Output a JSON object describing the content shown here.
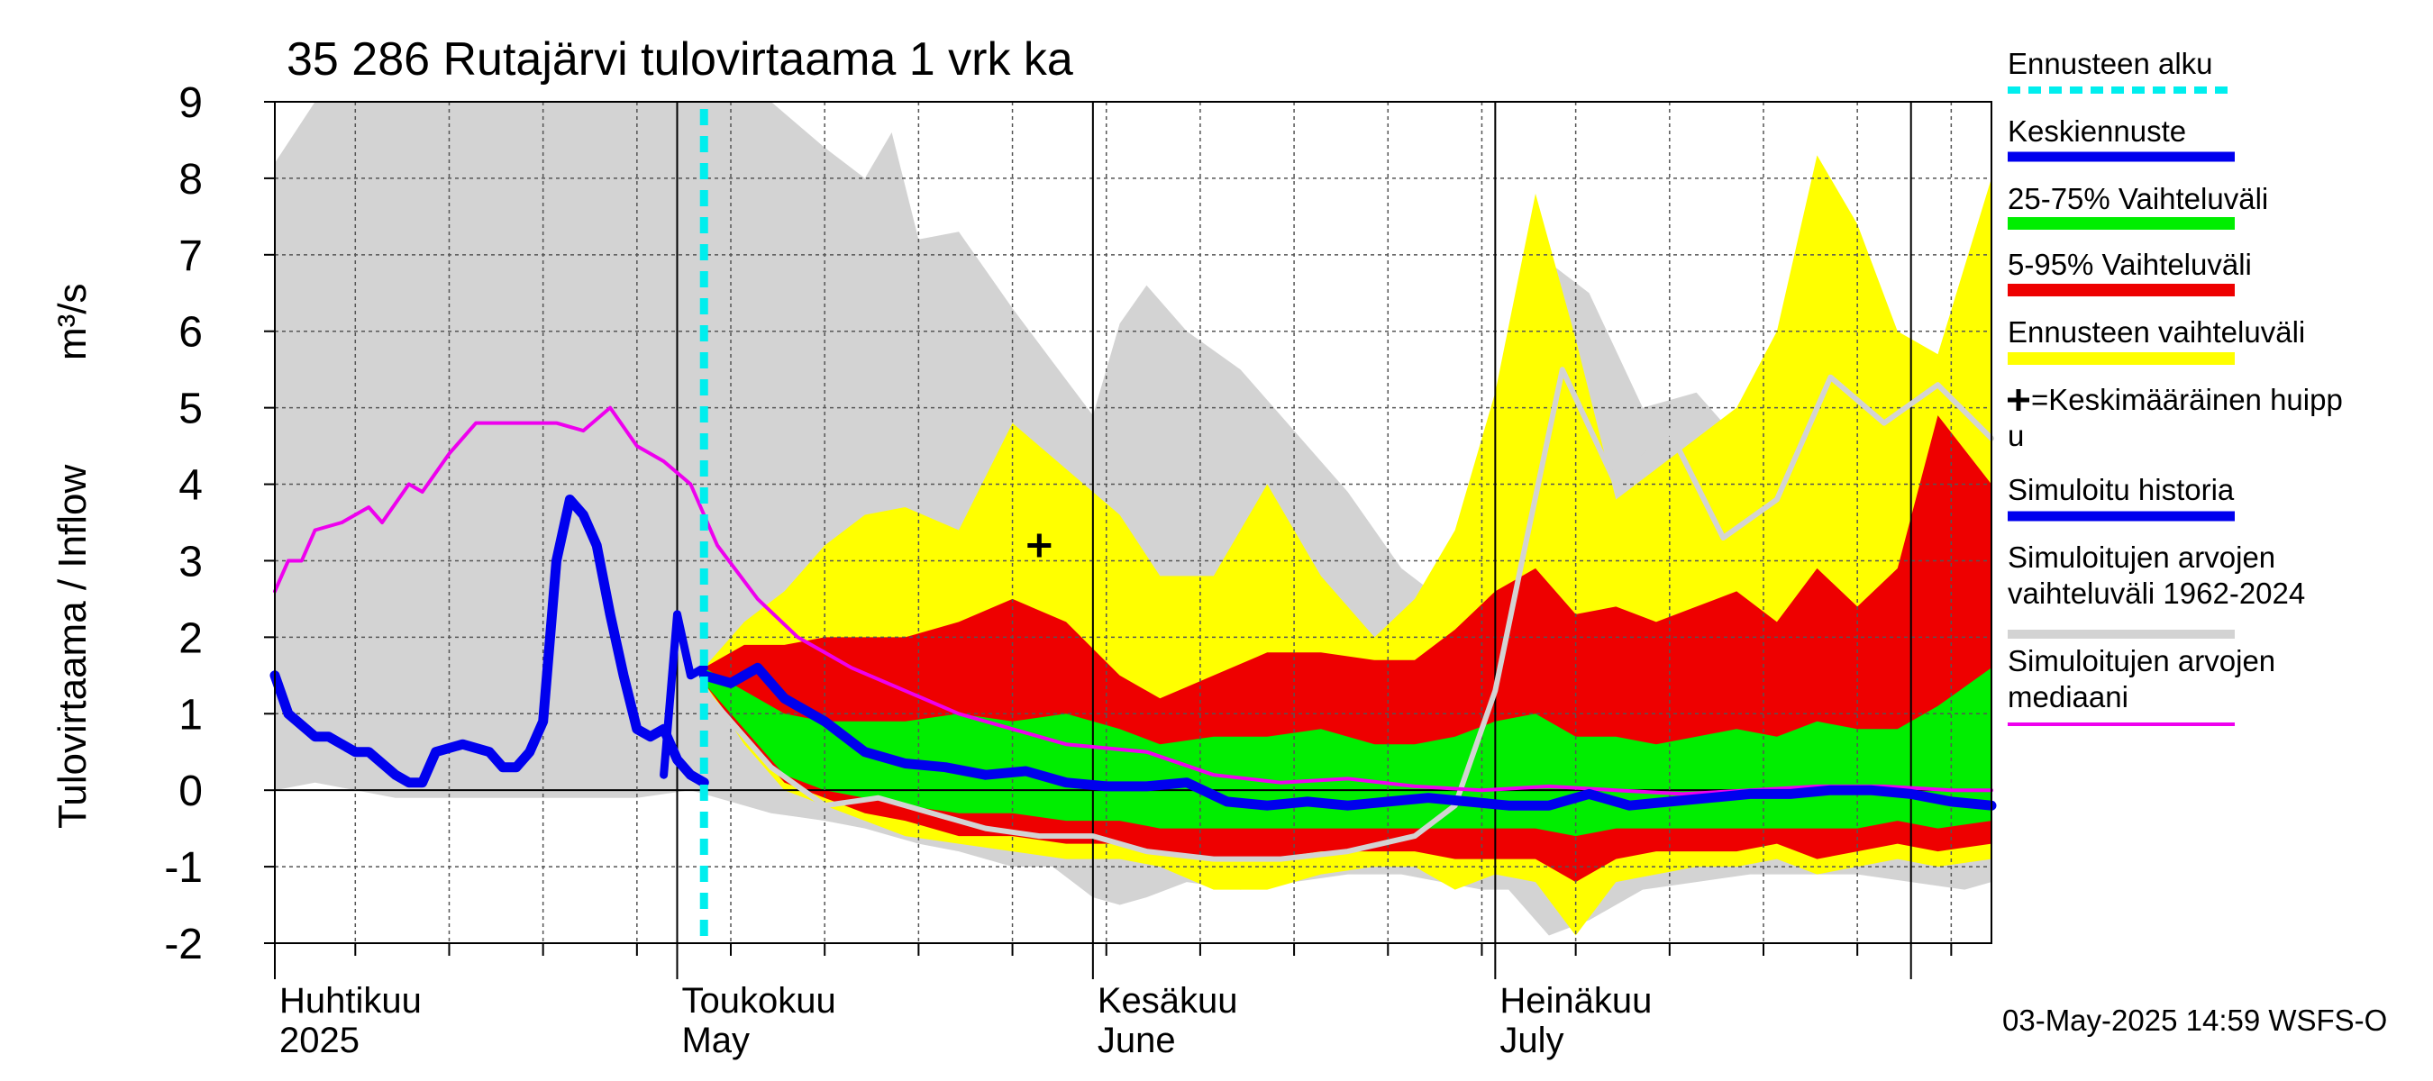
{
  "chart_data": {
    "type": "area",
    "title": "35 286 Rutajärvi tulovirtaama 1 vrk ka",
    "ylabel": "Tulovirtaama / Inflow",
    "yunit": "m³/s",
    "ylim": [
      -2,
      9
    ],
    "yticks": [
      "-2",
      "-1",
      "0",
      "1",
      "2",
      "3",
      "4",
      "5",
      "6",
      "7",
      "8",
      "9"
    ],
    "x_start": "2025-04-01",
    "x_end": "2025-08-07",
    "grid": true,
    "legend_position": "right",
    "month_labels": [
      {
        "date": "2025-04-01",
        "fi": "Huhtikuu",
        "en": "2025"
      },
      {
        "date": "2025-05-01",
        "fi": "Toukokuu",
        "en": "May"
      },
      {
        "date": "2025-06-01",
        "fi": "Kesäkuu",
        "en": "June"
      },
      {
        "date": "2025-07-01",
        "fi": "Heinäkuu",
        "en": "July"
      }
    ],
    "forecast_start": "2025-05-03",
    "mean_peak": {
      "date": "2025-05-28",
      "value": 3.2
    },
    "timestamp": "03-May-2025 14:59 WSFS-O",
    "colors": {
      "forecast_start": "#00eeee",
      "forecast_mean": "#0000ee",
      "range_25_75": "#00ee00",
      "range_5_95": "#ee0000",
      "forecast_range": "#ffff00",
      "simulated_history": "#0000ee",
      "historical_range": "#d3d3d3",
      "median": "#ee00ee"
    },
    "legend": [
      {
        "key": "forecast_start",
        "label": "Ennusteen alku",
        "style": "dashed"
      },
      {
        "key": "forecast_mean",
        "label": "Keskiennuste",
        "style": "line"
      },
      {
        "key": "range_25_75",
        "label": "25-75% Vaihteluväli",
        "style": "band"
      },
      {
        "key": "range_5_95",
        "label": "5-95% Vaihteluväli",
        "style": "band"
      },
      {
        "key": "forecast_range",
        "label": "Ennusteen vaihteluväli",
        "style": "band"
      },
      {
        "key": "mean_peak",
        "label": "=Keskimääräinen huipp",
        "label2": "u",
        "style": "marker"
      },
      {
        "key": "simulated_history",
        "label": "Simuloitu historia",
        "style": "line"
      },
      {
        "key": "historical_range",
        "label": "Simuloitujen arvojen",
        "label2": "vaihteluväli 1962-2024",
        "style": "thinband"
      },
      {
        "key": "median",
        "label": "Simuloitujen arvojen",
        "label2": "mediaani",
        "style": "thin"
      }
    ],
    "series": {
      "historical_range": {
        "x": [
          "2025-04-01",
          "2025-04-04",
          "2025-04-10",
          "2025-04-20",
          "2025-04-25",
          "2025-04-28",
          "2025-05-02",
          "2025-05-08",
          "2025-05-12",
          "2025-05-15",
          "2025-05-17",
          "2025-05-19",
          "2025-05-22",
          "2025-05-26",
          "2025-05-29",
          "2025-06-01",
          "2025-06-03",
          "2025-06-05",
          "2025-06-08",
          "2025-06-12",
          "2025-06-16",
          "2025-06-20",
          "2025-06-24",
          "2025-06-27",
          "2025-06-30",
          "2025-07-02",
          "2025-07-05",
          "2025-07-08",
          "2025-07-12",
          "2025-07-16",
          "2025-07-20",
          "2025-07-24",
          "2025-07-28",
          "2025-08-01",
          "2025-08-05",
          "2025-08-07"
        ],
        "upper": [
          8.2,
          9.0,
          9.0,
          9.0,
          9.0,
          9.0,
          9.0,
          9.0,
          8.4,
          8.0,
          8.6,
          7.2,
          7.3,
          6.3,
          5.6,
          4.9,
          6.1,
          6.6,
          6.0,
          5.5,
          4.7,
          3.9,
          2.9,
          2.5,
          3.2,
          4.0,
          6.9,
          6.5,
          5.0,
          5.2,
          4.4,
          4.1,
          4.6,
          5.3,
          5.1,
          5.2
        ],
        "lower": [
          0.0,
          0.1,
          -0.1,
          -0.1,
          -0.1,
          -0.1,
          0.0,
          -0.3,
          -0.4,
          -0.5,
          -0.6,
          -0.7,
          -0.8,
          -1.0,
          -1.0,
          -1.4,
          -1.5,
          -1.4,
          -1.2,
          -1.3,
          -1.2,
          -1.1,
          -1.1,
          -1.2,
          -1.3,
          -1.3,
          -1.9,
          -1.7,
          -1.3,
          -1.2,
          -1.1,
          -1.1,
          -1.1,
          -1.2,
          -1.3,
          -1.2
        ]
      },
      "forecast_range": {
        "x": [
          "2025-05-03",
          "2025-05-06",
          "2025-05-09",
          "2025-05-12",
          "2025-05-15",
          "2025-05-18",
          "2025-05-22",
          "2025-05-26",
          "2025-05-30",
          "2025-06-03",
          "2025-06-06",
          "2025-06-10",
          "2025-06-14",
          "2025-06-18",
          "2025-06-22",
          "2025-06-25",
          "2025-06-28",
          "2025-07-01",
          "2025-07-04",
          "2025-07-07",
          "2025-07-10",
          "2025-07-13",
          "2025-07-16",
          "2025-07-19",
          "2025-07-22",
          "2025-07-25",
          "2025-07-28",
          "2025-07-31",
          "2025-08-03",
          "2025-08-07"
        ],
        "upper": [
          1.6,
          2.2,
          2.6,
          3.2,
          3.6,
          3.7,
          3.4,
          4.8,
          4.2,
          3.6,
          2.8,
          2.8,
          4.0,
          2.8,
          2.0,
          2.5,
          3.4,
          5.2,
          7.8,
          5.9,
          3.8,
          4.2,
          4.6,
          5.0,
          6.0,
          8.3,
          7.4,
          6.0,
          5.7,
          8.0
        ],
        "lower": [
          1.4,
          0.6,
          0.0,
          -0.2,
          -0.4,
          -0.6,
          -0.7,
          -0.8,
          -0.9,
          -0.9,
          -1.0,
          -1.3,
          -1.3,
          -1.1,
          -1.0,
          -1.0,
          -1.3,
          -1.1,
          -1.2,
          -1.9,
          -1.2,
          -1.1,
          -1.0,
          -1.0,
          -0.9,
          -1.1,
          -1.0,
          -0.9,
          -1.0,
          -0.9
        ]
      },
      "range_5_95": {
        "x": [
          "2025-05-03",
          "2025-05-06",
          "2025-05-09",
          "2025-05-12",
          "2025-05-15",
          "2025-05-18",
          "2025-05-22",
          "2025-05-26",
          "2025-05-30",
          "2025-06-03",
          "2025-06-06",
          "2025-06-10",
          "2025-06-14",
          "2025-06-18",
          "2025-06-22",
          "2025-06-25",
          "2025-06-28",
          "2025-07-01",
          "2025-07-04",
          "2025-07-07",
          "2025-07-10",
          "2025-07-13",
          "2025-07-16",
          "2025-07-19",
          "2025-07-22",
          "2025-07-25",
          "2025-07-28",
          "2025-07-31",
          "2025-08-03",
          "2025-08-07"
        ],
        "upper": [
          1.6,
          1.9,
          1.9,
          2.0,
          2.0,
          2.0,
          2.2,
          2.5,
          2.2,
          1.5,
          1.2,
          1.5,
          1.8,
          1.8,
          1.7,
          1.7,
          2.1,
          2.6,
          2.9,
          2.3,
          2.4,
          2.2,
          2.4,
          2.6,
          2.2,
          2.9,
          2.4,
          2.9,
          4.9,
          4.0
        ],
        "lower": [
          1.4,
          0.7,
          0.1,
          -0.1,
          -0.3,
          -0.4,
          -0.6,
          -0.6,
          -0.7,
          -0.7,
          -0.8,
          -0.9,
          -0.9,
          -0.8,
          -0.8,
          -0.8,
          -0.9,
          -0.9,
          -0.9,
          -1.2,
          -0.9,
          -0.8,
          -0.8,
          -0.8,
          -0.7,
          -0.9,
          -0.8,
          -0.7,
          -0.8,
          -0.7
        ]
      },
      "range_25_75": {
        "x": [
          "2025-05-03",
          "2025-05-06",
          "2025-05-09",
          "2025-05-12",
          "2025-05-15",
          "2025-05-18",
          "2025-05-22",
          "2025-05-26",
          "2025-05-30",
          "2025-06-03",
          "2025-06-06",
          "2025-06-10",
          "2025-06-14",
          "2025-06-18",
          "2025-06-22",
          "2025-06-25",
          "2025-06-28",
          "2025-07-01",
          "2025-07-04",
          "2025-07-07",
          "2025-07-10",
          "2025-07-13",
          "2025-07-16",
          "2025-07-19",
          "2025-07-22",
          "2025-07-25",
          "2025-07-28",
          "2025-07-31",
          "2025-08-03",
          "2025-08-07"
        ],
        "upper": [
          1.6,
          1.3,
          1.0,
          0.9,
          0.9,
          0.9,
          1.0,
          0.9,
          1.0,
          0.8,
          0.6,
          0.7,
          0.7,
          0.8,
          0.6,
          0.6,
          0.7,
          0.9,
          1.0,
          0.7,
          0.7,
          0.6,
          0.7,
          0.8,
          0.7,
          0.9,
          0.8,
          0.8,
          1.1,
          1.6
        ],
        "lower": [
          1.4,
          0.8,
          0.2,
          0.0,
          -0.1,
          -0.2,
          -0.3,
          -0.3,
          -0.4,
          -0.4,
          -0.5,
          -0.5,
          -0.5,
          -0.5,
          -0.5,
          -0.5,
          -0.5,
          -0.5,
          -0.5,
          -0.6,
          -0.5,
          -0.5,
          -0.5,
          -0.5,
          -0.5,
          -0.5,
          -0.5,
          -0.4,
          -0.5,
          -0.4
        ]
      },
      "forecast_mean": {
        "x": [
          "2025-05-03",
          "2025-05-05",
          "2025-05-07",
          "2025-05-09",
          "2025-05-12",
          "2025-05-15",
          "2025-05-18",
          "2025-05-21",
          "2025-05-24",
          "2025-05-27",
          "2025-05-30",
          "2025-06-02",
          "2025-06-05",
          "2025-06-08",
          "2025-06-11",
          "2025-06-14",
          "2025-06-17",
          "2025-06-20",
          "2025-06-23",
          "2025-06-26",
          "2025-06-29",
          "2025-07-02",
          "2025-07-05",
          "2025-07-08",
          "2025-07-11",
          "2025-07-14",
          "2025-07-17",
          "2025-07-20",
          "2025-07-23",
          "2025-07-26",
          "2025-07-29",
          "2025-08-01",
          "2025-08-04",
          "2025-08-07"
        ],
        "values": [
          1.5,
          1.4,
          1.6,
          1.2,
          0.9,
          0.5,
          0.35,
          0.3,
          0.2,
          0.25,
          0.1,
          0.05,
          0.05,
          0.1,
          -0.15,
          -0.2,
          -0.15,
          -0.2,
          -0.15,
          -0.1,
          -0.15,
          -0.2,
          -0.2,
          -0.05,
          -0.2,
          -0.15,
          -0.1,
          -0.05,
          -0.05,
          0.0,
          0.0,
          -0.05,
          -0.15,
          -0.2
        ]
      },
      "simulated_history": {
        "x": [
          "2025-04-01",
          "2025-04-02",
          "2025-04-04",
          "2025-04-05",
          "2025-04-07",
          "2025-04-08",
          "2025-04-10",
          "2025-04-11",
          "2025-04-12",
          "2025-04-13",
          "2025-04-15",
          "2025-04-17",
          "2025-04-18",
          "2025-04-19",
          "2025-04-20",
          "2025-04-21",
          "2025-04-22",
          "2025-04-23",
          "2025-04-24",
          "2025-04-25",
          "2025-04-26",
          "2025-04-27",
          "2025-04-28",
          "2025-04-29",
          "2025-04-30",
          "2025-05-01",
          "2025-05-02",
          "2025-05-03"
        ],
        "values": [
          1.5,
          1.0,
          0.7,
          0.7,
          0.5,
          0.5,
          0.2,
          0.1,
          0.1,
          0.5,
          0.6,
          0.5,
          0.3,
          0.3,
          0.5,
          0.9,
          3.0,
          3.8,
          3.6,
          3.2,
          2.3,
          1.5,
          0.8,
          0.7,
          0.8,
          0.4,
          0.2,
          0.1
        ]
      },
      "simulated_history_tail": {
        "x": [
          "2025-04-30",
          "2025-05-01",
          "2025-05-02",
          "2025-05-03"
        ],
        "values": [
          0.2,
          2.3,
          1.5,
          1.6
        ]
      },
      "median": {
        "x": [
          "2025-04-01",
          "2025-04-02",
          "2025-04-03",
          "2025-04-04",
          "2025-04-06",
          "2025-04-08",
          "2025-04-09",
          "2025-04-11",
          "2025-04-12",
          "2025-04-14",
          "2025-04-16",
          "2025-04-18",
          "2025-04-20",
          "2025-04-22",
          "2025-04-24",
          "2025-04-26",
          "2025-04-28",
          "2025-04-30",
          "2025-05-02",
          "2025-05-04",
          "2025-05-07",
          "2025-05-10",
          "2025-05-12",
          "2025-05-14",
          "2025-05-18",
          "2025-05-22",
          "2025-05-26",
          "2025-05-30",
          "2025-06-05",
          "2025-06-10",
          "2025-06-15",
          "2025-06-20",
          "2025-06-25",
          "2025-06-30",
          "2025-07-05",
          "2025-07-10",
          "2025-07-15",
          "2025-07-20",
          "2025-07-25",
          "2025-07-30",
          "2025-08-04",
          "2025-08-07"
        ],
        "values": [
          2.6,
          3.0,
          3.0,
          3.4,
          3.5,
          3.7,
          3.5,
          4.0,
          3.9,
          4.4,
          4.8,
          4.8,
          4.8,
          4.8,
          4.7,
          5.0,
          4.5,
          4.3,
          4.0,
          3.2,
          2.5,
          2.0,
          1.8,
          1.6,
          1.3,
          1.0,
          0.8,
          0.6,
          0.5,
          0.2,
          0.1,
          0.15,
          0.05,
          0.0,
          0.05,
          0.0,
          -0.05,
          0.0,
          0.05,
          0.05,
          0.0,
          0.0
        ]
      },
      "historical_median_line": {
        "x": [
          "2025-05-03",
          "2025-05-08",
          "2025-05-12",
          "2025-05-16",
          "2025-05-20",
          "2025-05-24",
          "2025-05-28",
          "2025-06-01",
          "2025-06-05",
          "2025-06-10",
          "2025-06-15",
          "2025-06-20",
          "2025-06-25",
          "2025-06-28",
          "2025-07-01",
          "2025-07-03",
          "2025-07-06",
          "2025-07-10",
          "2025-07-14",
          "2025-07-18",
          "2025-07-22",
          "2025-07-26",
          "2025-07-30",
          "2025-08-03",
          "2025-08-07"
        ],
        "values": [
          1.3,
          0.3,
          -0.2,
          -0.1,
          -0.3,
          -0.5,
          -0.6,
          -0.6,
          -0.8,
          -0.9,
          -0.9,
          -0.8,
          -0.6,
          -0.2,
          1.3,
          3.0,
          5.5,
          4.0,
          4.7,
          3.3,
          3.8,
          5.4,
          4.8,
          5.3,
          4.6
        ]
      }
    }
  }
}
